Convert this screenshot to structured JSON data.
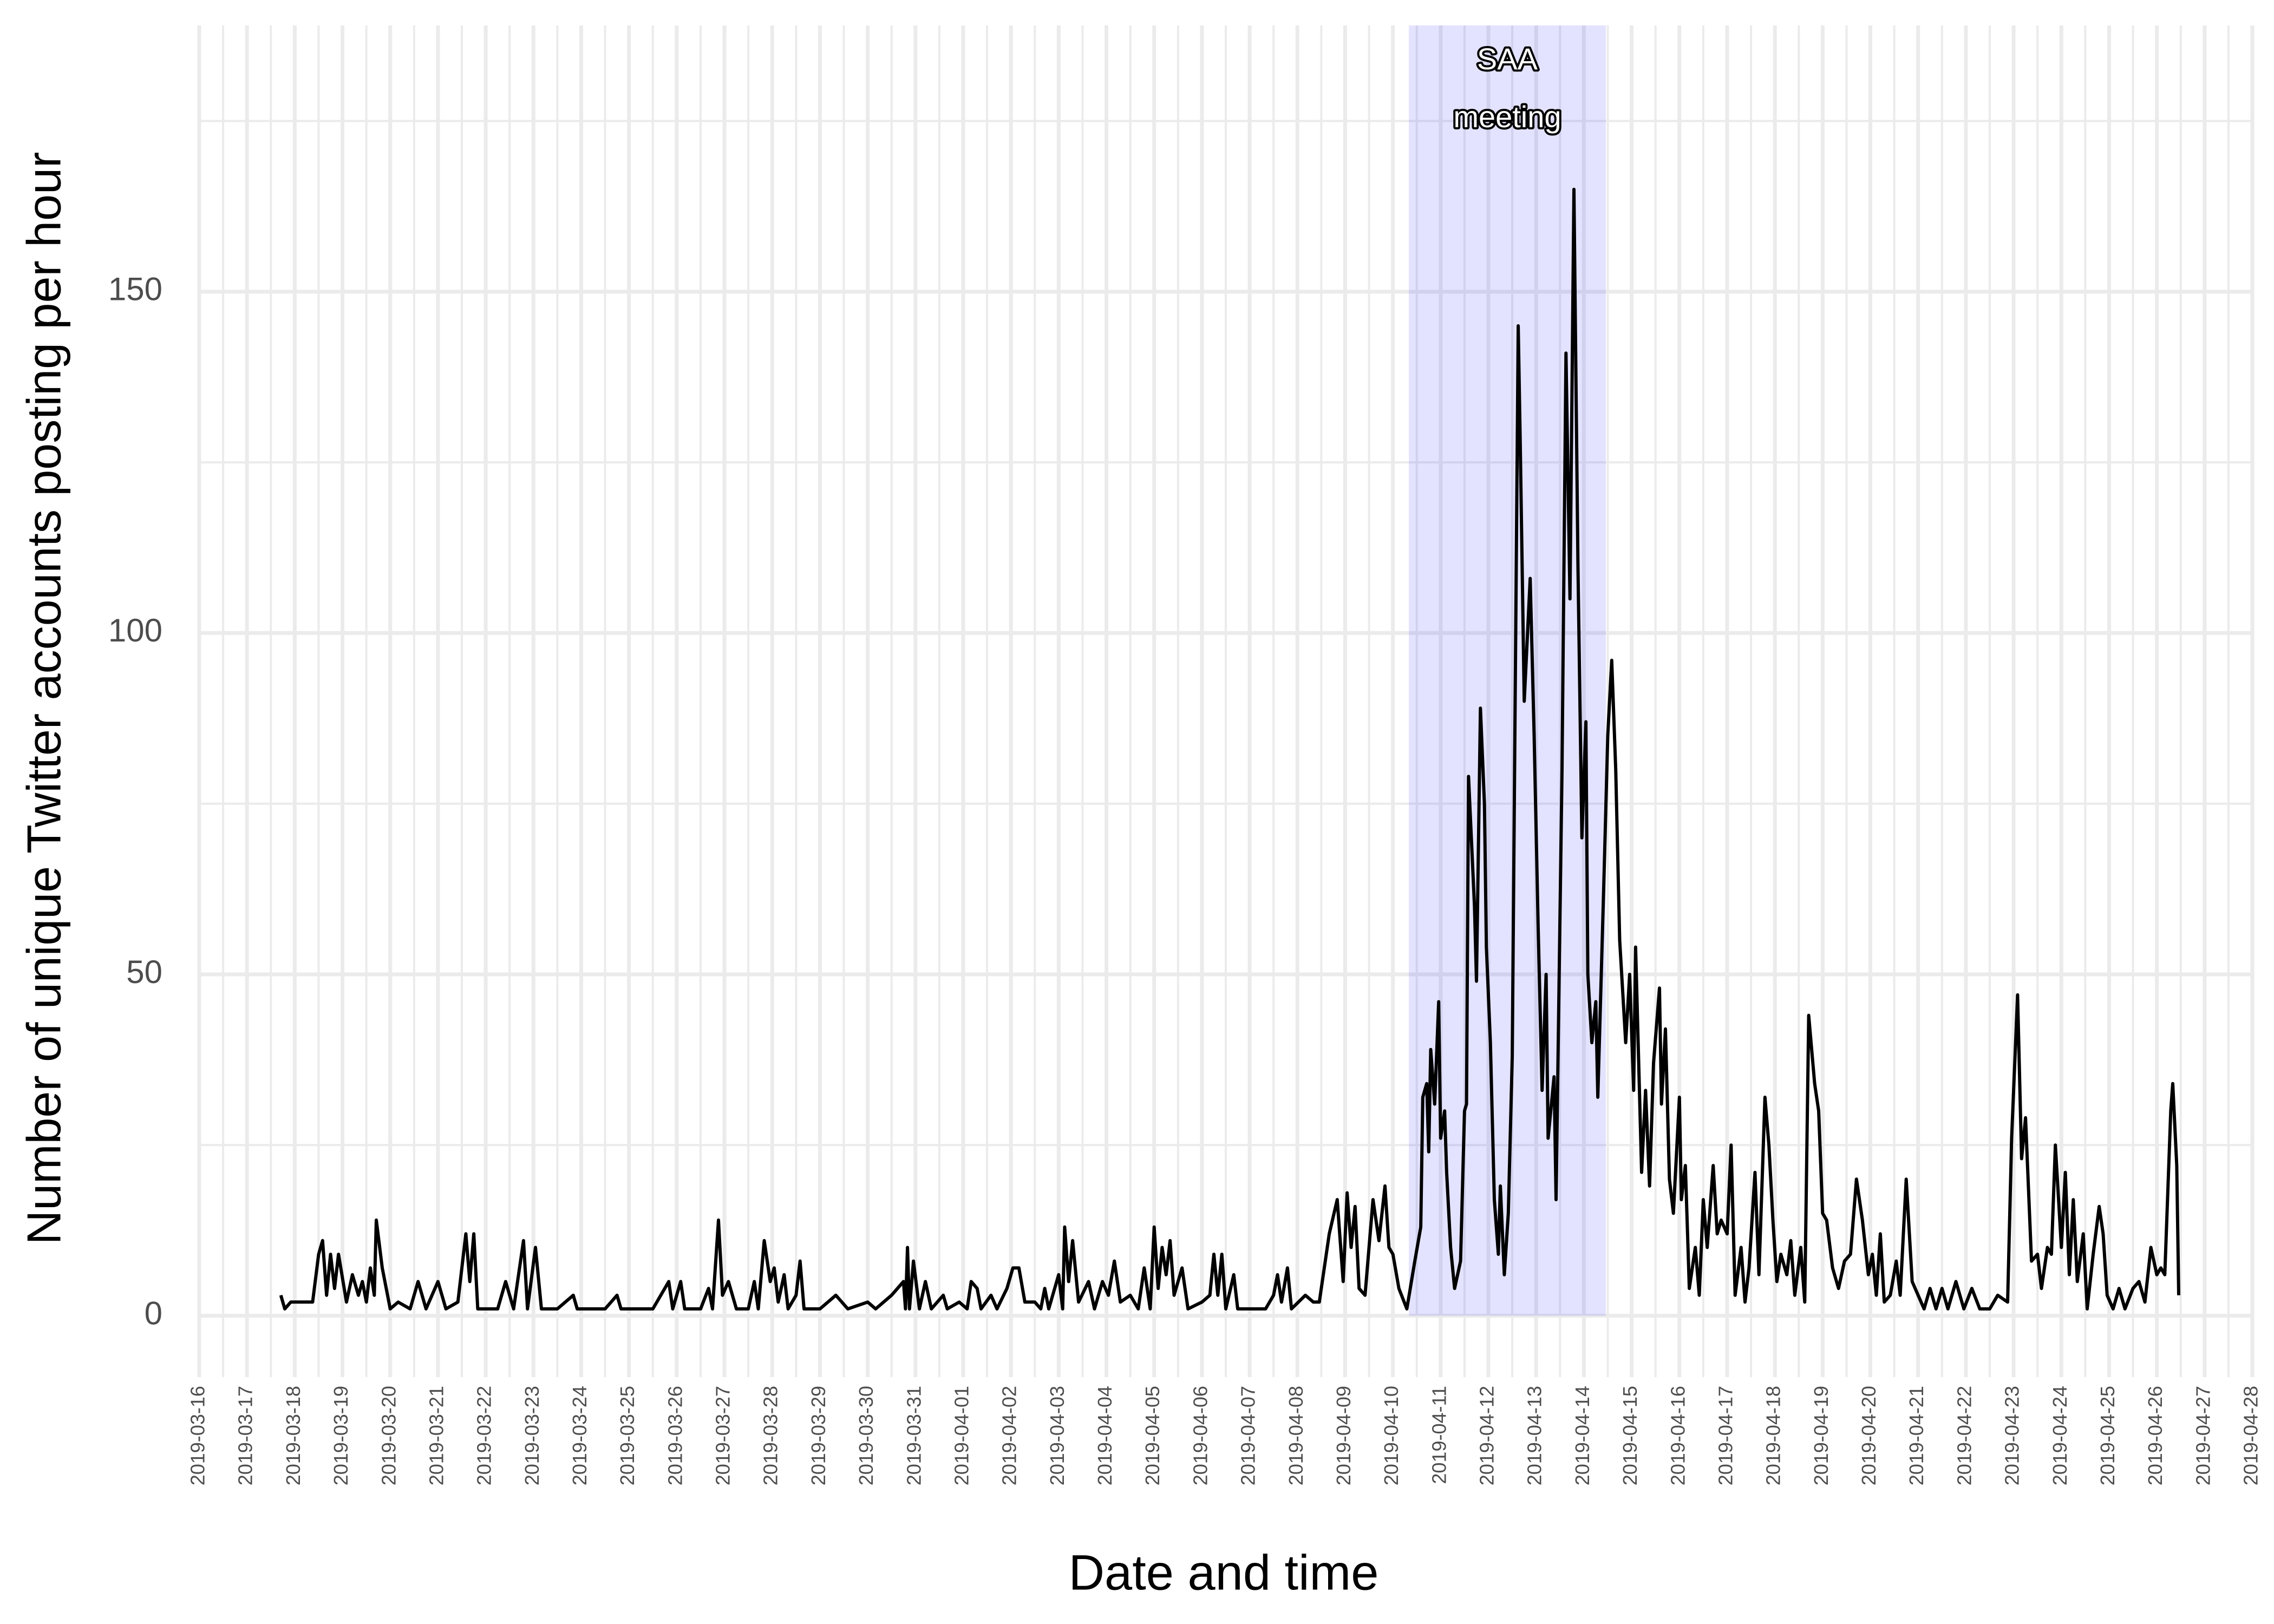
{
  "chart_data": {
    "type": "line",
    "x_label": "Date and time",
    "y_label": "Number of unique Twitter accounts posting per hour",
    "color": "#000000",
    "grid": true,
    "xlim": [
      "2019-03-16",
      "2019-04-28"
    ],
    "xticks": [
      "2019-03-16",
      "2019-03-17",
      "2019-03-18",
      "2019-03-19",
      "2019-03-20",
      "2019-03-21",
      "2019-03-22",
      "2019-03-23",
      "2019-03-24",
      "2019-03-25",
      "2019-03-26",
      "2019-03-27",
      "2019-03-28",
      "2019-03-29",
      "2019-03-30",
      "2019-03-31",
      "2019-04-01",
      "2019-04-02",
      "2019-04-03",
      "2019-04-04",
      "2019-04-05",
      "2019-04-06",
      "2019-04-07",
      "2019-04-08",
      "2019-04-09",
      "2019-04-10",
      "2019-04-11",
      "2019-04-12",
      "2019-04-13",
      "2019-04-14",
      "2019-04-15",
      "2019-04-16",
      "2019-04-17",
      "2019-04-18",
      "2019-04-19",
      "2019-04-20",
      "2019-04-21",
      "2019-04-22",
      "2019-04-23",
      "2019-04-24",
      "2019-04-25",
      "2019-04-26",
      "2019-04-27",
      "2019-04-28"
    ],
    "ylim": [
      -9,
      189
    ],
    "yticks": [
      0,
      50,
      100,
      150
    ],
    "shade": {
      "start": "2019-04-10 08:00",
      "end": "2019-04-14 11:00",
      "color": "#0000ff1c",
      "label": [
        "SAA",
        "meeting"
      ]
    },
    "x": [
      "2019-03-17 17:00",
      "2019-03-17 19:00",
      "2019-03-17 22:00",
      "2019-03-18 06:00",
      "2019-03-18 09:00",
      "2019-03-18 12:00",
      "2019-03-18 14:00",
      "2019-03-18 16:00",
      "2019-03-18 18:00",
      "2019-03-18 20:00",
      "2019-03-18 22:00",
      "2019-03-19 02:00",
      "2019-03-19 05:00",
      "2019-03-19 08:00",
      "2019-03-19 10:00",
      "2019-03-19 12:00",
      "2019-03-19 14:00",
      "2019-03-19 16:00",
      "2019-03-19 17:00",
      "2019-03-19 20:00",
      "2019-03-20 00:00",
      "2019-03-20 04:00",
      "2019-03-20 10:00",
      "2019-03-20 14:00",
      "2019-03-20 18:00",
      "2019-03-21 00:00",
      "2019-03-21 04:00",
      "2019-03-21 10:00",
      "2019-03-21 14:00",
      "2019-03-21 16:00",
      "2019-03-21 18:00",
      "2019-03-21 20:00",
      "2019-03-22 06:00",
      "2019-03-22 10:00",
      "2019-03-22 14:00",
      "2019-03-22 19:00",
      "2019-03-22 21:00",
      "2019-03-23 01:00",
      "2019-03-23 04:00",
      "2019-03-23 12:00",
      "2019-03-23 20:00",
      "2019-03-23 22:00",
      "2019-03-24 12:00",
      "2019-03-24 18:00",
      "2019-03-24 20:00",
      "2019-03-25 12:00",
      "2019-03-25 20:00",
      "2019-03-25 22:00",
      "2019-03-26 02:00",
      "2019-03-26 04:00",
      "2019-03-26 12:00",
      "2019-03-26 16:00",
      "2019-03-26 18:00",
      "2019-03-26 21:00",
      "2019-03-26 23:00",
      "2019-03-27 02:00",
      "2019-03-27 06:00",
      "2019-03-27 12:00",
      "2019-03-27 15:00",
      "2019-03-27 17:00",
      "2019-03-27 20:00",
      "2019-03-27 23:00",
      "2019-03-28 01:00",
      "2019-03-28 03:00",
      "2019-03-28 06:00",
      "2019-03-28 08:00",
      "2019-03-28 12:00",
      "2019-03-28 14:00",
      "2019-03-28 16:00",
      "2019-03-29 00:00",
      "2019-03-29 08:00",
      "2019-03-29 14:00",
      "2019-03-30 00:00",
      "2019-03-30 04:00",
      "2019-03-30 12:00",
      "2019-03-30 18:00",
      "2019-03-30 19:00",
      "2019-03-30 20:00",
      "2019-03-30 21:00",
      "2019-03-30 23:00",
      "2019-03-31 02:00",
      "2019-03-31 05:00",
      "2019-03-31 08:00",
      "2019-03-31 14:00",
      "2019-03-31 16:00",
      "2019-03-31 22:00",
      "2019-04-01 02:00",
      "2019-04-01 04:00",
      "2019-04-01 07:00",
      "2019-04-01 09:00",
      "2019-04-01 14:00",
      "2019-04-01 17:00",
      "2019-04-01 22:00",
      "2019-04-02 01:00",
      "2019-04-02 04:00",
      "2019-04-02 07:00",
      "2019-04-02 12:00",
      "2019-04-02 15:00",
      "2019-04-02 17:00",
      "2019-04-02 19:00",
      "2019-04-03 00:00",
      "2019-04-03 02:00",
      "2019-04-03 03:00",
      "2019-04-03 05:00",
      "2019-04-03 07:00",
      "2019-04-03 10:00",
      "2019-04-03 15:00",
      "2019-04-03 18:00",
      "2019-04-03 22:00",
      "2019-04-04 01:00",
      "2019-04-04 04:00",
      "2019-04-04 07:00",
      "2019-04-04 12:00",
      "2019-04-04 16:00",
      "2019-04-04 19:00",
      "2019-04-04 22:00",
      "2019-04-05 00:00",
      "2019-04-05 02:00",
      "2019-04-05 04:00",
      "2019-04-05 06:00",
      "2019-04-05 08:00",
      "2019-04-05 10:00",
      "2019-04-05 14:00",
      "2019-04-05 17:00",
      "2019-04-06 00:00",
      "2019-04-06 04:00",
      "2019-04-06 06:00",
      "2019-04-06 08:00",
      "2019-04-06 10:00",
      "2019-04-06 12:00",
      "2019-04-06 16:00",
      "2019-04-06 18:00",
      "2019-04-07 08:00",
      "2019-04-07 12:00",
      "2019-04-07 14:00",
      "2019-04-07 16:00",
      "2019-04-07 19:00",
      "2019-04-07 21:00",
      "2019-04-08 04:00",
      "2019-04-08 08:00",
      "2019-04-08 11:00",
      "2019-04-08 16:00",
      "2019-04-08 20:00",
      "2019-04-08 23:00",
      "2019-04-09 01:00",
      "2019-04-09 03:00",
      "2019-04-09 05:00",
      "2019-04-09 07:00",
      "2019-04-09 10:00",
      "2019-04-09 14:00",
      "2019-04-09 17:00",
      "2019-04-09 20:00",
      "2019-04-09 22:00",
      "2019-04-10 00:00",
      "2019-04-10 03:00",
      "2019-04-10 07:00",
      "2019-04-10 11:00",
      "2019-04-10 14:00",
      "2019-04-10 15:00",
      "2019-04-10 17:00",
      "2019-04-10 18:00",
      "2019-04-10 19:00",
      "2019-04-10 21:00",
      "2019-04-10 23:00",
      "2019-04-11 00:00",
      "2019-04-11 02:00",
      "2019-04-11 03:00",
      "2019-04-11 05:00",
      "2019-04-11 07:00",
      "2019-04-11 10:00",
      "2019-04-11 12:00",
      "2019-04-11 13:00",
      "2019-04-11 14:00",
      "2019-04-11 17:00",
      "2019-04-11 18:00",
      "2019-04-11 20:00",
      "2019-04-11 22:00",
      "2019-04-11 23:00",
      "2019-04-12 01:00",
      "2019-04-12 03:00",
      "2019-04-12 05:00",
      "2019-04-12 06:00",
      "2019-04-12 08:00",
      "2019-04-12 10:00",
      "2019-04-12 12:00",
      "2019-04-12 15:00",
      "2019-04-12 16:00",
      "2019-04-12 18:00",
      "2019-04-12 21:00",
      "2019-04-12 23:00",
      "2019-04-13 01:00",
      "2019-04-13 03:00",
      "2019-04-13 05:00",
      "2019-04-13 06:00",
      "2019-04-13 09:00",
      "2019-04-13 10:00",
      "2019-04-13 13:00",
      "2019-04-13 15:00",
      "2019-04-13 17:00",
      "2019-04-13 19:00",
      "2019-04-13 21:00",
      "2019-04-13 23:00",
      "2019-04-14 01:00",
      "2019-04-14 02:00",
      "2019-04-14 04:00",
      "2019-04-14 06:00",
      "2019-04-14 07:00",
      "2019-04-14 10:00",
      "2019-04-14 12:00",
      "2019-04-14 14:00",
      "2019-04-14 16:00",
      "2019-04-14 18:00",
      "2019-04-14 21:00",
      "2019-04-14 23:00",
      "2019-04-15 01:00",
      "2019-04-15 02:00",
      "2019-04-15 05:00",
      "2019-04-15 07:00",
      "2019-04-15 09:00",
      "2019-04-15 11:00",
      "2019-04-15 14:00",
      "2019-04-15 15:00",
      "2019-04-15 17:00",
      "2019-04-15 19:00",
      "2019-04-15 21:00",
      "2019-04-16 00:00",
      "2019-04-16 01:00",
      "2019-04-16 03:00",
      "2019-04-16 05:00",
      "2019-04-16 08:00",
      "2019-04-16 10:00",
      "2019-04-16 12:00",
      "2019-04-16 14:00",
      "2019-04-16 17:00",
      "2019-04-16 19:00",
      "2019-04-16 21:00",
      "2019-04-17 00:00",
      "2019-04-17 02:00",
      "2019-04-17 04:00",
      "2019-04-17 07:00",
      "2019-04-17 09:00",
      "2019-04-17 11:00",
      "2019-04-17 14:00",
      "2019-04-17 16:00",
      "2019-04-17 19:00",
      "2019-04-17 21:00",
      "2019-04-17 23:00",
      "2019-04-18 01:00",
      "2019-04-18 03:00",
      "2019-04-18 06:00",
      "2019-04-18 08:00",
      "2019-04-18 10:00",
      "2019-04-18 13:00",
      "2019-04-18 15:00",
      "2019-04-18 17:00",
      "2019-04-18 20:00",
      "2019-04-18 22:00",
      "2019-04-19 00:00",
      "2019-04-19 02:00",
      "2019-04-19 05:00",
      "2019-04-19 08:00",
      "2019-04-19 11:00",
      "2019-04-19 14:00",
      "2019-04-19 17:00",
      "2019-04-19 20:00",
      "2019-04-19 23:00",
      "2019-04-20 01:00",
      "2019-04-20 03:00",
      "2019-04-20 05:00",
      "2019-04-20 07:00",
      "2019-04-20 10:00",
      "2019-04-20 13:00",
      "2019-04-20 15:00",
      "2019-04-20 18:00",
      "2019-04-20 21:00",
      "2019-04-21 00:00",
      "2019-04-21 03:00",
      "2019-04-21 06:00",
      "2019-04-21 09:00",
      "2019-04-21 12:00",
      "2019-04-21 15:00",
      "2019-04-21 19:00",
      "2019-04-21 23:00",
      "2019-04-22 03:00",
      "2019-04-22 07:00",
      "2019-04-22 12:00",
      "2019-04-22 16:00",
      "2019-04-22 21:00",
      "2019-04-22 23:00",
      "2019-04-23 02:00",
      "2019-04-23 04:00",
      "2019-04-23 06:00",
      "2019-04-23 09:00",
      "2019-04-23 12:00",
      "2019-04-23 14:00",
      "2019-04-23 17:00",
      "2019-04-23 19:00",
      "2019-04-23 21:00",
      "2019-04-24 00:00",
      "2019-04-24 02:00",
      "2019-04-24 04:00",
      "2019-04-24 06:00",
      "2019-04-24 08:00",
      "2019-04-24 11:00",
      "2019-04-24 13:00",
      "2019-04-24 16:00",
      "2019-04-24 19:00",
      "2019-04-24 21:00",
      "2019-04-24 23:00",
      "2019-04-25 02:00",
      "2019-04-25 05:00",
      "2019-04-25 08:00",
      "2019-04-25 12:00",
      "2019-04-25 15:00",
      "2019-04-25 18:00",
      "2019-04-25 21:00",
      "2019-04-26 00:00",
      "2019-04-26 02:00",
      "2019-04-26 04:00",
      "2019-04-26 07:00",
      "2019-04-26 08:00",
      "2019-04-26 10:00",
      "2019-04-26 11:00"
    ],
    "values": [
      3,
      1,
      2,
      2,
      2,
      9,
      11,
      3,
      9,
      4,
      9,
      2,
      6,
      3,
      5,
      2,
      7,
      3,
      14,
      7,
      1,
      2,
      1,
      5,
      1,
      5,
      1,
      2,
      12,
      5,
      12,
      1,
      1,
      5,
      1,
      11,
      1,
      10,
      1,
      1,
      3,
      1,
      1,
      3,
      1,
      1,
      5,
      1,
      5,
      1,
      1,
      4,
      1,
      14,
      3,
      5,
      1,
      1,
      5,
      1,
      11,
      5,
      7,
      2,
      6,
      1,
      3,
      8,
      1,
      1,
      3,
      1,
      2,
      1,
      3,
      5,
      1,
      10,
      1,
      8,
      1,
      5,
      1,
      3,
      1,
      2,
      1,
      5,
      4,
      1,
      3,
      1,
      4,
      7,
      7,
      2,
      2,
      1,
      4,
      1,
      6,
      1,
      13,
      5,
      11,
      2,
      5,
      1,
      5,
      3,
      8,
      2,
      3,
      1,
      7,
      1,
      13,
      4,
      10,
      6,
      11,
      3,
      7,
      1,
      2,
      3,
      9,
      3,
      9,
      1,
      6,
      1,
      1,
      3,
      6,
      2,
      7,
      1,
      3,
      2,
      2,
      12,
      17,
      5,
      18,
      10,
      16,
      4,
      3,
      17,
      11,
      19,
      10,
      9,
      4,
      1,
      8,
      13,
      32,
      34,
      24,
      39,
      31,
      46,
      26,
      30,
      21,
      10,
      4,
      8,
      30,
      31,
      79,
      60,
      49,
      89,
      75,
      54,
      40,
      17,
      9,
      19,
      6,
      15,
      38,
      145,
      128,
      90,
      108,
      85,
      57,
      33,
      50,
      26,
      35,
      17,
      80,
      141,
      105,
      165,
      110,
      70,
      87,
      50,
      40,
      46,
      32,
      63,
      85,
      96,
      80,
      55,
      40,
      50,
      33,
      54,
      21,
      33,
      19,
      37,
      48,
      31,
      42,
      20,
      15,
      32,
      17,
      22,
      4,
      10,
      3,
      17,
      10,
      22,
      12,
      14,
      12,
      25,
      3,
      10,
      2,
      7,
      21,
      6,
      32,
      25,
      14,
      5,
      9,
      6,
      11,
      3,
      10,
      2,
      44,
      34,
      30,
      15,
      14,
      7,
      4,
      8,
      9,
      20,
      14,
      6,
      9,
      3,
      12,
      2,
      3,
      8,
      3,
      20,
      5,
      3,
      1,
      4,
      1,
      4,
      1,
      5,
      1,
      4,
      1,
      1,
      3,
      2,
      26,
      47,
      23,
      29,
      8,
      9,
      4,
      10,
      9,
      25,
      10,
      21,
      6,
      17,
      5,
      12,
      1,
      9,
      16,
      12,
      3,
      1,
      4,
      1,
      4,
      5,
      2,
      10,
      6,
      7,
      6,
      30,
      34,
      22,
      3
    ]
  }
}
